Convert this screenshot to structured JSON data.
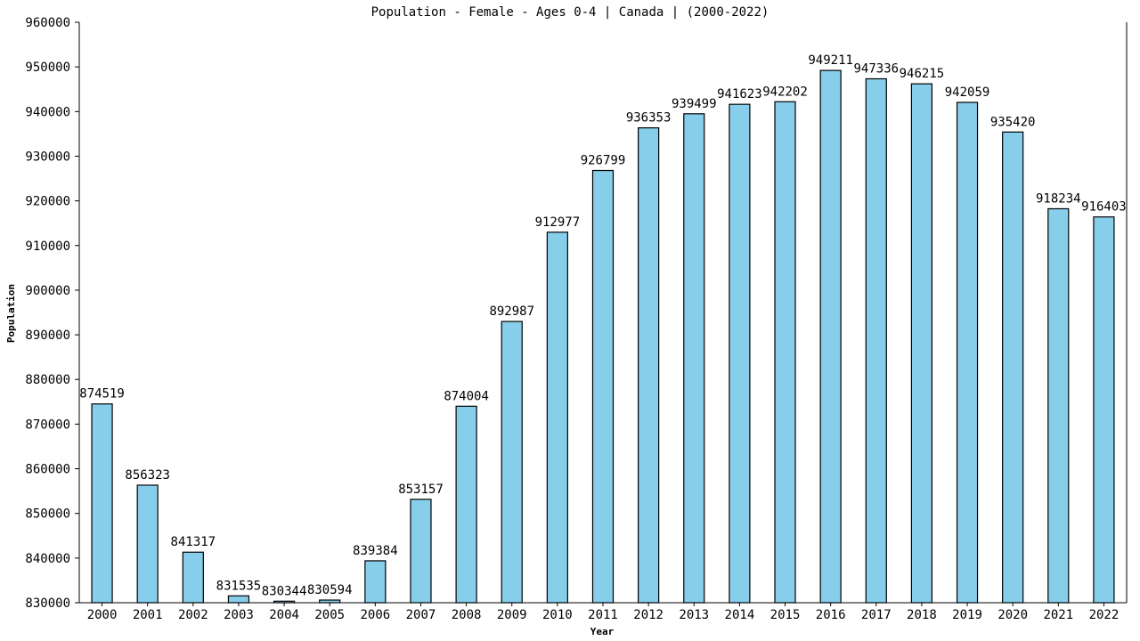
{
  "chart_data": {
    "type": "bar",
    "title": "Population - Female - Ages 0-4 | Canada |  (2000-2022)",
    "xlabel": "Year",
    "ylabel": "Population",
    "ylim": [
      830000,
      960000
    ],
    "yticks": [
      830000,
      840000,
      850000,
      860000,
      870000,
      880000,
      890000,
      900000,
      910000,
      920000,
      930000,
      940000,
      950000,
      960000
    ],
    "categories": [
      "2000",
      "2001",
      "2002",
      "2003",
      "2004",
      "2005",
      "2006",
      "2007",
      "2008",
      "2009",
      "2010",
      "2011",
      "2012",
      "2013",
      "2014",
      "2015",
      "2016",
      "2017",
      "2018",
      "2019",
      "2020",
      "2021",
      "2022"
    ],
    "values": [
      874519,
      856323,
      841317,
      831535,
      830344,
      830594,
      839384,
      853157,
      874004,
      892987,
      912977,
      926799,
      936353,
      939499,
      941623,
      942202,
      949211,
      947336,
      946215,
      942059,
      935420,
      918234,
      916403
    ],
    "grid": false,
    "bar_color": "#87ceeb",
    "bar_edge_color": "#000000"
  }
}
